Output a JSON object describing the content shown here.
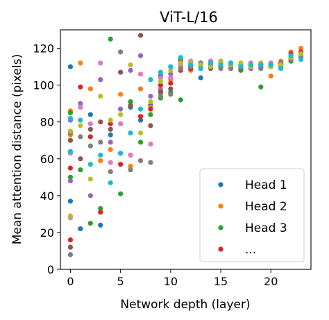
{
  "chart_data": {
    "type": "scatter",
    "title": "ViT-L/16",
    "xlabel": "Network depth (layer)",
    "ylabel": "Mean attention distance (pixels)",
    "xlim": [
      -1,
      24
    ],
    "ylim": [
      0,
      130
    ],
    "xticks": [
      0,
      5,
      10,
      15,
      20
    ],
    "yticks": [
      0,
      20,
      40,
      60,
      80,
      100,
      120
    ],
    "grid": false,
    "legend_position": "lower-right",
    "legend": [
      {
        "label": "Head 1",
        "color": "#1f77b4"
      },
      {
        "label": "Head 2",
        "color": "#ff7f0e"
      },
      {
        "label": "Head 3",
        "color": "#2ca02c"
      },
      {
        "label": "...",
        "color": "#d62728"
      }
    ],
    "series": [
      {
        "color": "#1f77b4",
        "points": [
          [
            0,
            110
          ],
          [
            0,
            37
          ],
          [
            1,
            22
          ],
          [
            2,
            84
          ],
          [
            3,
            24
          ],
          [
            4,
            73
          ],
          [
            5,
            63
          ],
          [
            6,
            88
          ],
          [
            7,
            81
          ],
          [
            8,
            89
          ],
          [
            9,
            105
          ],
          [
            10,
            110
          ],
          [
            11,
            112
          ],
          [
            12,
            111
          ],
          [
            13,
            104
          ],
          [
            14,
            113
          ],
          [
            15,
            110
          ],
          [
            16,
            111
          ],
          [
            17,
            110
          ],
          [
            18,
            111
          ],
          [
            19,
            111
          ],
          [
            20,
            110
          ],
          [
            21,
            112
          ],
          [
            22,
            115
          ],
          [
            23,
            116
          ]
        ]
      },
      {
        "color": "#ff7f0e",
        "points": [
          [
            0,
            86
          ],
          [
            0,
            73
          ],
          [
            1,
            112
          ],
          [
            2,
            98
          ],
          [
            3,
            59
          ],
          [
            4,
            65
          ],
          [
            5,
            95
          ],
          [
            6,
            56
          ],
          [
            7,
            98
          ],
          [
            8,
            88
          ],
          [
            9,
            98
          ],
          [
            10,
            103
          ],
          [
            11,
            110
          ],
          [
            12,
            108
          ],
          [
            13,
            111
          ],
          [
            14,
            110
          ],
          [
            15,
            112
          ],
          [
            16,
            109
          ],
          [
            17,
            110
          ],
          [
            18,
            111
          ],
          [
            19,
            112
          ],
          [
            20,
            105
          ],
          [
            21,
            113
          ],
          [
            22,
            118
          ],
          [
            23,
            120
          ]
        ]
      },
      {
        "color": "#2ca02c",
        "points": [
          [
            0,
            85
          ],
          [
            0,
            50
          ],
          [
            1,
            54
          ],
          [
            2,
            25
          ],
          [
            3,
            33
          ],
          [
            4,
            125
          ],
          [
            5,
            41
          ],
          [
            6,
            91
          ],
          [
            7,
            69
          ],
          [
            8,
            84
          ],
          [
            9,
            93
          ],
          [
            10,
            96
          ],
          [
            11,
            92
          ],
          [
            12,
            110
          ],
          [
            13,
            112
          ],
          [
            14,
            111
          ],
          [
            15,
            111
          ],
          [
            16,
            110
          ],
          [
            17,
            108
          ],
          [
            18,
            110
          ],
          [
            19,
            99
          ],
          [
            20,
            111
          ],
          [
            21,
            110
          ],
          [
            22,
            113
          ],
          [
            23,
            114
          ]
        ]
      },
      {
        "color": "#d62728",
        "points": [
          [
            0,
            16
          ],
          [
            0,
            55
          ],
          [
            1,
            99
          ],
          [
            2,
            72
          ],
          [
            3,
            31
          ],
          [
            4,
            79
          ],
          [
            5,
            57
          ],
          [
            6,
            62
          ],
          [
            7,
            83
          ],
          [
            8,
            87
          ],
          [
            9,
            100
          ],
          [
            10,
            101
          ],
          [
            11,
            108
          ],
          [
            12,
            109
          ],
          [
            13,
            110
          ],
          [
            14,
            112
          ],
          [
            15,
            110
          ],
          [
            16,
            110
          ],
          [
            17,
            111
          ],
          [
            18,
            110
          ],
          [
            19,
            110
          ],
          [
            20,
            110
          ],
          [
            21,
            111
          ],
          [
            22,
            117
          ],
          [
            23,
            118
          ]
        ]
      },
      {
        "color": "#9467bd",
        "points": [
          [
            0,
            48
          ],
          [
            0,
            81
          ],
          [
            1,
            90
          ],
          [
            2,
            40
          ],
          [
            3,
            103
          ],
          [
            4,
            69
          ],
          [
            5,
            87
          ],
          [
            6,
            108
          ],
          [
            7,
            116
          ],
          [
            8,
            94
          ],
          [
            9,
            97
          ],
          [
            10,
            106
          ],
          [
            11,
            114
          ],
          [
            12,
            111
          ],
          [
            13,
            109
          ],
          [
            14,
            110
          ],
          [
            15,
            113
          ],
          [
            16,
            111
          ],
          [
            17,
            110
          ],
          [
            18,
            109
          ],
          [
            19,
            110
          ],
          [
            20,
            111
          ],
          [
            21,
            112
          ],
          [
            22,
            114
          ],
          [
            23,
            117
          ]
        ]
      },
      {
        "color": "#8c564b",
        "points": [
          [
            0,
            12
          ],
          [
            0,
            70
          ],
          [
            1,
            60
          ],
          [
            2,
            76
          ],
          [
            3,
            80
          ],
          [
            4,
            76
          ],
          [
            5,
            107
          ],
          [
            6,
            89
          ],
          [
            7,
            127
          ],
          [
            8,
            78
          ],
          [
            9,
            96
          ],
          [
            10,
            98
          ],
          [
            11,
            113
          ],
          [
            12,
            112
          ],
          [
            13,
            111
          ],
          [
            14,
            109
          ],
          [
            15,
            112
          ],
          [
            16,
            112
          ],
          [
            17,
            109
          ],
          [
            18,
            111
          ],
          [
            19,
            111
          ],
          [
            20,
            112
          ],
          [
            21,
            110
          ],
          [
            22,
            116
          ],
          [
            23,
            115
          ]
        ]
      },
      {
        "color": "#e377c2",
        "points": [
          [
            0,
            63
          ],
          [
            0,
            28
          ],
          [
            1,
            88
          ],
          [
            2,
            79
          ],
          [
            3,
            112
          ],
          [
            4,
            58
          ],
          [
            5,
            79
          ],
          [
            6,
            62
          ],
          [
            7,
            106
          ],
          [
            8,
            68
          ],
          [
            9,
            104
          ],
          [
            10,
            104
          ],
          [
            11,
            111
          ],
          [
            12,
            113
          ],
          [
            13,
            110
          ],
          [
            14,
            113
          ],
          [
            15,
            112
          ],
          [
            16,
            110
          ],
          [
            17,
            111
          ],
          [
            18,
            112
          ],
          [
            19,
            110
          ],
          [
            20,
            112
          ],
          [
            21,
            111
          ],
          [
            22,
            116
          ],
          [
            23,
            116
          ]
        ]
      },
      {
        "color": "#7f7f7f",
        "points": [
          [
            0,
            8
          ],
          [
            0,
            74
          ],
          [
            1,
            72
          ],
          [
            2,
            67
          ],
          [
            3,
            69
          ],
          [
            4,
            53
          ],
          [
            5,
            118
          ],
          [
            6,
            54
          ],
          [
            7,
            59
          ],
          [
            8,
            58
          ],
          [
            9,
            94
          ],
          [
            10,
            95
          ],
          [
            11,
            109
          ],
          [
            12,
            110
          ],
          [
            13,
            112
          ],
          [
            14,
            111
          ],
          [
            15,
            109
          ],
          [
            16,
            109
          ],
          [
            17,
            111
          ],
          [
            18,
            110
          ],
          [
            19,
            109
          ],
          [
            20,
            111
          ],
          [
            21,
            112
          ],
          [
            22,
            114
          ],
          [
            23,
            115
          ]
        ]
      },
      {
        "color": "#bcbd22",
        "points": [
          [
            0,
            75
          ],
          [
            0,
            29
          ],
          [
            1,
            78
          ],
          [
            2,
            49
          ],
          [
            3,
            94
          ],
          [
            4,
            81
          ],
          [
            5,
            84
          ],
          [
            6,
            111
          ],
          [
            7,
            74
          ],
          [
            8,
            91
          ],
          [
            9,
            102
          ],
          [
            10,
            108
          ],
          [
            11,
            112
          ],
          [
            12,
            112
          ],
          [
            13,
            111
          ],
          [
            14,
            110
          ],
          [
            15,
            113
          ],
          [
            16,
            111
          ],
          [
            17,
            112
          ],
          [
            18,
            110
          ],
          [
            19,
            112
          ],
          [
            20,
            110
          ],
          [
            21,
            111
          ],
          [
            22,
            115
          ],
          [
            23,
            117
          ]
        ]
      },
      {
        "color": "#17becf",
        "points": [
          [
            0,
            82
          ],
          [
            0,
            64
          ],
          [
            1,
            81
          ],
          [
            2,
            57
          ],
          [
            3,
            62
          ],
          [
            4,
            47
          ],
          [
            5,
            63
          ],
          [
            6,
            74
          ],
          [
            7,
            87
          ],
          [
            8,
            103
          ],
          [
            9,
            107
          ],
          [
            10,
            110
          ],
          [
            11,
            115
          ],
          [
            12,
            111
          ],
          [
            13,
            109
          ],
          [
            14,
            112
          ],
          [
            15,
            111
          ],
          [
            16,
            112
          ],
          [
            17,
            110
          ],
          [
            18,
            111
          ],
          [
            19,
            111
          ],
          [
            20,
            111
          ],
          [
            21,
            109
          ],
          [
            22,
            116
          ],
          [
            23,
            114
          ]
        ]
      }
    ]
  }
}
